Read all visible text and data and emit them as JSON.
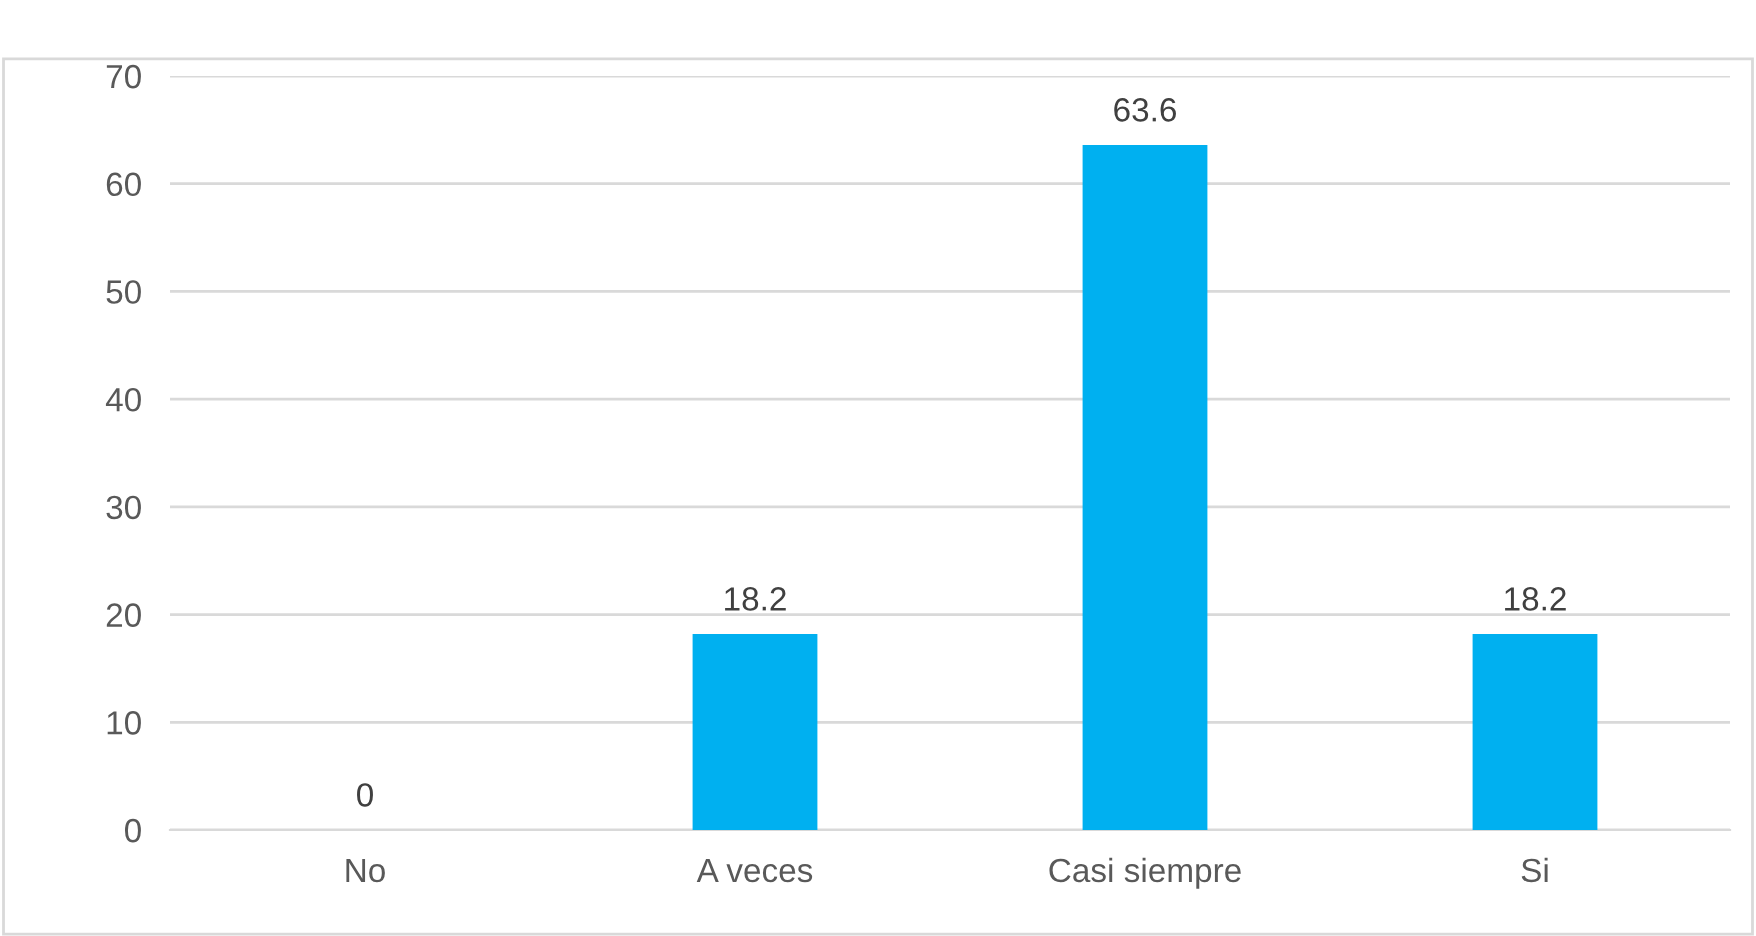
{
  "chart_data": {
    "type": "bar",
    "categories": [
      "No",
      "A veces",
      "Casi siempre",
      "Si"
    ],
    "values": [
      0,
      18.2,
      63.6,
      18.2
    ],
    "color": "#00b0f0",
    "ylim": [
      0,
      70
    ],
    "yticks": [
      0,
      10,
      20,
      30,
      40,
      50,
      60,
      70
    ],
    "grid": "y",
    "data_labels": true
  }
}
